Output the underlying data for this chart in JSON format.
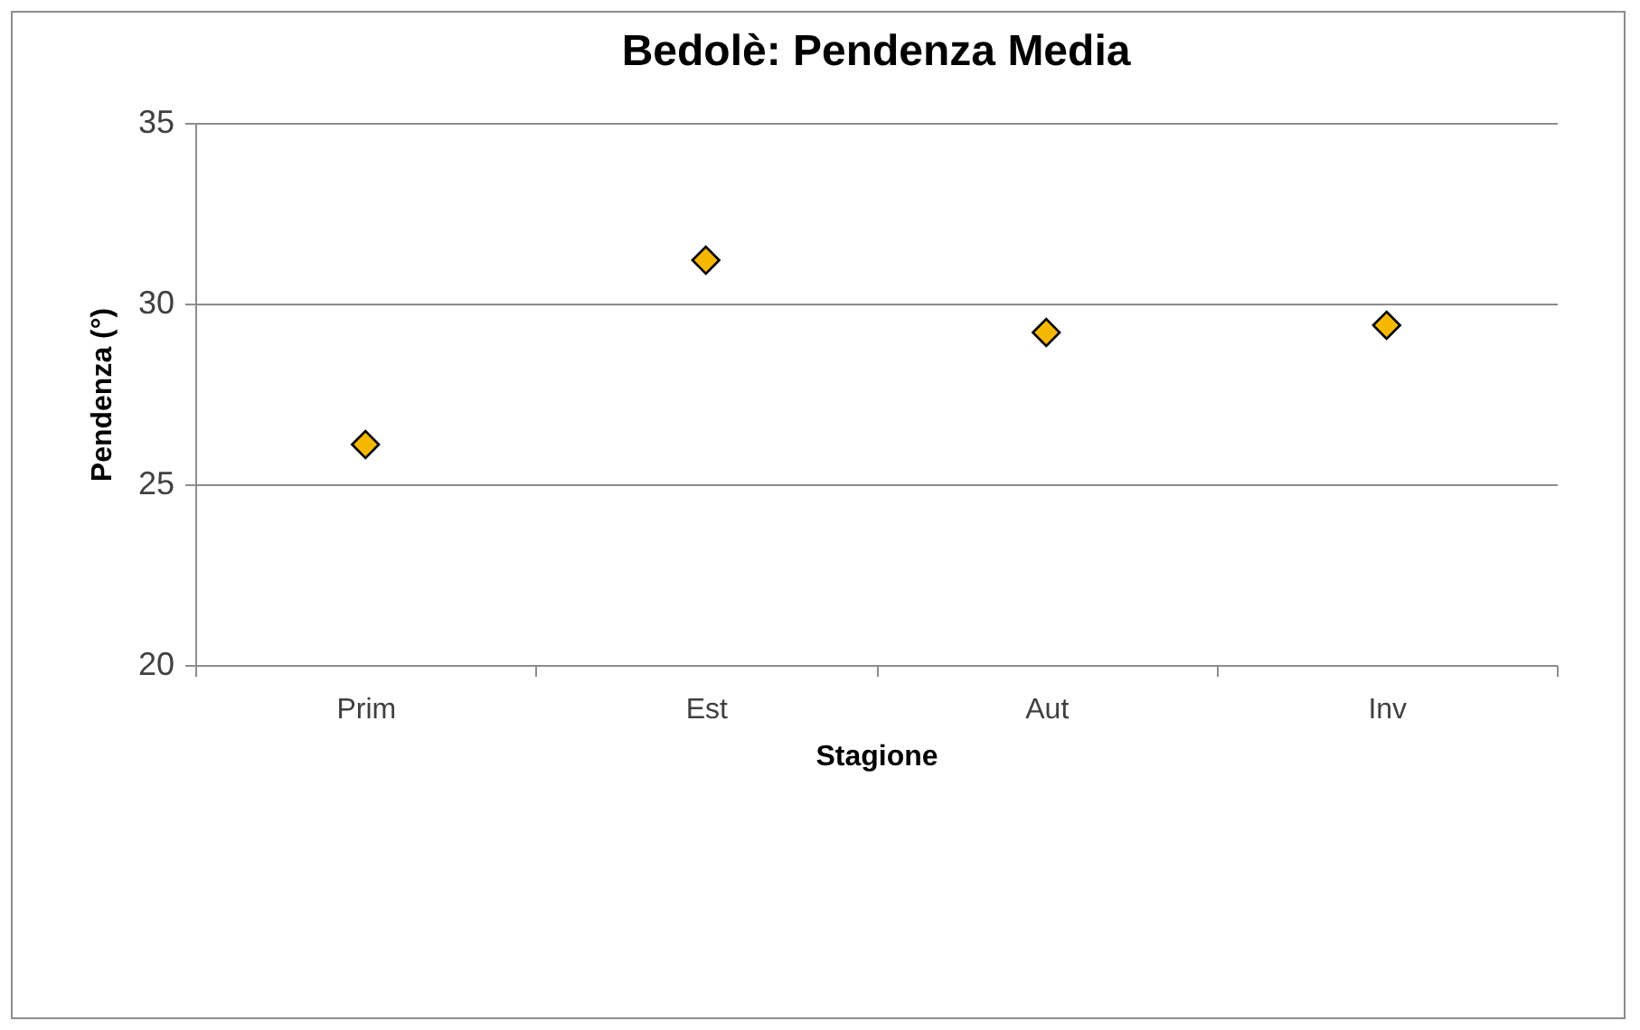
{
  "chart_data": {
    "type": "scatter",
    "title": "Bedolè:  Pendenza\nMedia",
    "xlabel": "Stagione",
    "ylabel": "Pendenza (°)",
    "categories": [
      "Prim",
      "Est",
      "Aut",
      "Inv"
    ],
    "series": [
      {
        "color": "#f5b800",
        "values": [
          26.1,
          31.2,
          29.2,
          29.4
        ]
      }
    ],
    "ylim": [
      20,
      35
    ],
    "yticks": [
      20,
      25,
      30,
      35
    ],
    "grid": "y",
    "marker": "diamond"
  }
}
